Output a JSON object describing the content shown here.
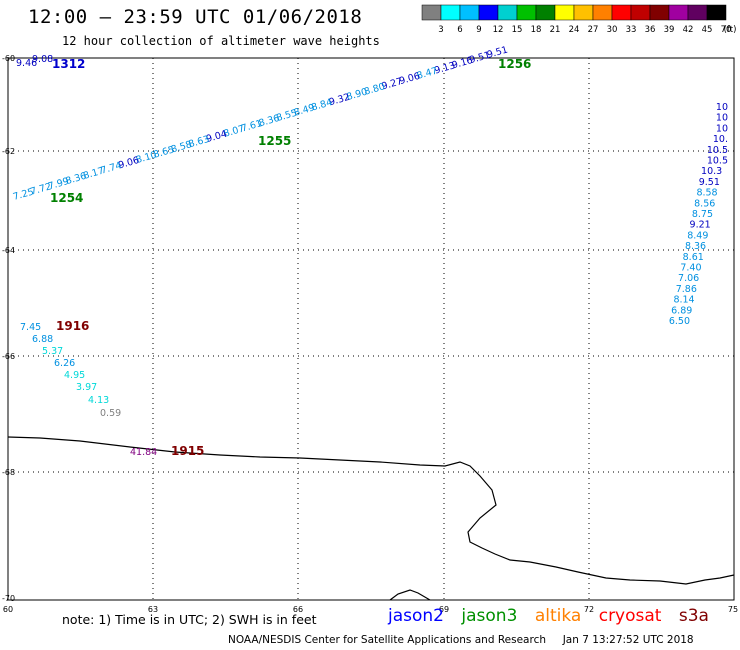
{
  "header": {
    "title": "12:00 – 23:59 UTC 01/06/2018",
    "subtitle": "12 hour collection of altimeter wave heights"
  },
  "color_scale": {
    "labels": [
      "3",
      "6",
      "9",
      "12",
      "15",
      "18",
      "21",
      "24",
      "27",
      "30",
      "33",
      "36",
      "39",
      "42",
      "45",
      "70",
      "(ft)"
    ],
    "colors": [
      "#808080",
      "#00ffff",
      "#00c0ff",
      "#0000ff",
      "#00d0d0",
      "#00c000",
      "#008000",
      "#ffff00",
      "#ffc000",
      "#ff8000",
      "#ff0000",
      "#c00000",
      "#800000",
      "#a000a0",
      "#600060",
      "#000000"
    ]
  },
  "axes": {
    "lat_labels": [
      "-60",
      "-62",
      "-64",
      "-66",
      "-68",
      "-70"
    ],
    "lon_labels": [
      "60",
      "63",
      "66",
      "69",
      "72",
      "75"
    ]
  },
  "track_labels": [
    {
      "text": "1312",
      "color": "#0000cc"
    },
    {
      "text": "1256",
      "color": "#008000"
    },
    {
      "text": "1255",
      "color": "#008000"
    },
    {
      "text": "1254",
      "color": "#008000"
    },
    {
      "text": "1916",
      "color": "#800000"
    },
    {
      "text": "1915",
      "color": "#800000"
    }
  ],
  "wave_values": {
    "track_1312": [
      "9.46",
      "9.08"
    ],
    "track_1256": [
      "9.51",
      "9.51",
      "9.16",
      "9.13",
      "8.47",
      "9.06",
      "9.27",
      "8.80",
      "8.90",
      "9.32",
      "8.84",
      "8.49",
      "8.55",
      "8.36",
      "7.61",
      "8.07",
      "9.04",
      "8.63",
      "8.58",
      "8.65",
      "8.10",
      "9.06",
      "7.74",
      "8.17",
      "8.36",
      "7.99",
      "7.72",
      "7.25"
    ],
    "track_right": [
      "10",
      "10",
      "10",
      "10.",
      "10.5",
      "10.5",
      "10.3",
      "9.51",
      "8.58",
      "8.56",
      "8.75",
      "9.21",
      "8.49",
      "8.36",
      "8.61",
      "7.40",
      "7.06",
      "7.86",
      "8.14",
      "6.89",
      "6.50"
    ],
    "track_1916": [
      "7.45",
      "6.88",
      "5.37",
      "6.26",
      "4.95",
      "3.97",
      "4.13",
      "0.59"
    ],
    "track_1915": [
      "41.84"
    ]
  },
  "note": "note: 1) Time is in UTC; 2) SWH is in feet",
  "satellites": [
    {
      "name": "jason2",
      "color": "#0000ff"
    },
    {
      "name": "jason3",
      "color": "#009000"
    },
    {
      "name": "altika",
      "color": "#ff8000"
    },
    {
      "name": "cryosat",
      "color": "#ff0000"
    },
    {
      "name": "s3a",
      "color": "#800000"
    }
  ],
  "credit": "NOAA/NESDIS Center for Satellite Applications and Research",
  "timestamp": "Jan  7 13:27:52 UTC 2018"
}
